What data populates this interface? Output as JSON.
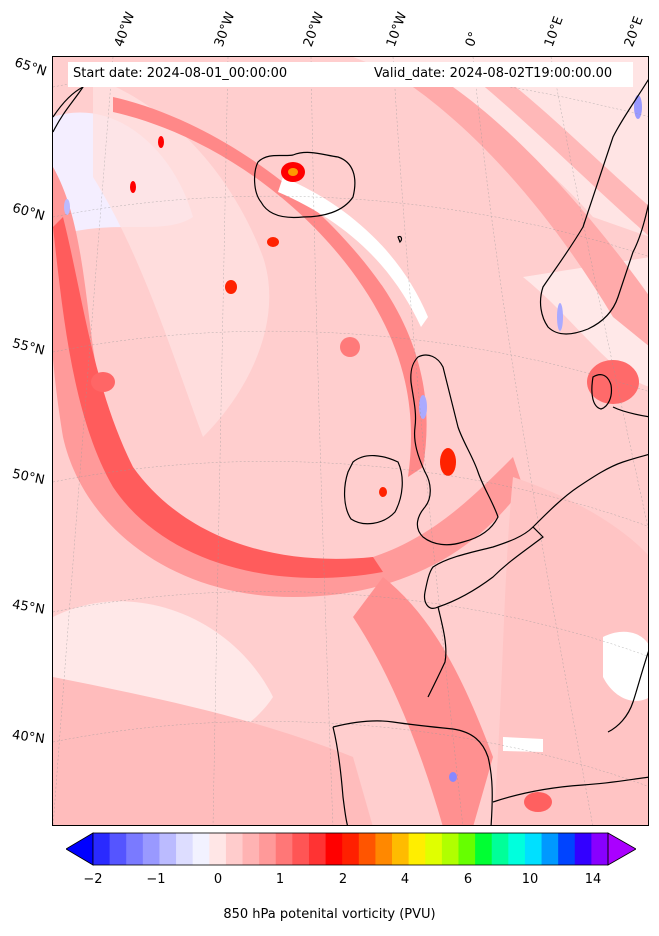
{
  "header": {
    "start_date": "Start date: 2024-08-01_00:00:00",
    "valid_date": "Valid_date: 2024-08-02T19:00:00.00"
  },
  "axes": {
    "longitude_labels": [
      "40°W",
      "30°W",
      "20°W",
      "10°W",
      "0°",
      "10°E",
      "20°E"
    ],
    "latitude_labels": [
      "65°N",
      "60°N",
      "55°N",
      "50°N",
      "45°N",
      "40°N"
    ]
  },
  "colorbar": {
    "label": "850 hPa potenital vorticity (PVU)",
    "tick_labels": [
      "−2",
      "−1",
      "0",
      "1",
      "2",
      "4",
      "6",
      "10",
      "14"
    ],
    "colors": [
      "#0000ff",
      "#2a2aff",
      "#5555ff",
      "#7a7aff",
      "#9999ff",
      "#bbbbff",
      "#ddddff",
      "#f2f2ff",
      "#ffe6e6",
      "#ffcccc",
      "#ffb3b3",
      "#ff9999",
      "#ff7777",
      "#ff5555",
      "#ff3333",
      "#ff0000",
      "#ff2000",
      "#ff5500",
      "#ff8800",
      "#ffbb00",
      "#ffee00",
      "#e0ff00",
      "#b0ff00",
      "#66ff00",
      "#00ff33",
      "#00ff99",
      "#00ffdd",
      "#00e0ff",
      "#0099ff",
      "#0044ff",
      "#3300ff",
      "#8800ff",
      "#aa00ff"
    ]
  },
  "map": {
    "field": "850 hPa potential vorticity",
    "projection": "polar stereographic",
    "background_color": "#ffd6d6",
    "coastline_color": "#000000"
  }
}
